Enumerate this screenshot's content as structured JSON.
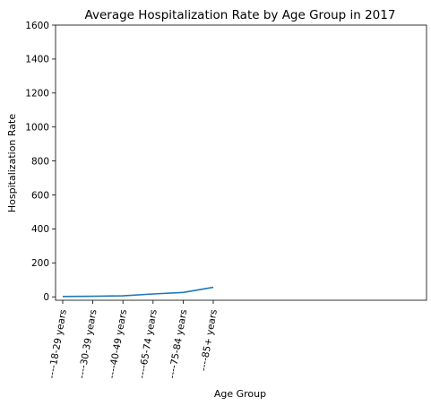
{
  "chart_data": {
    "type": "line",
    "title": "Average Hospitalization Rate by Age Group in 2017",
    "xlabel": "Age Group",
    "ylabel": "Hospitalization Rate",
    "categories": [
      "----18-29 years",
      "----30-39 years",
      "----40-49 years",
      "----65-74 years",
      "----75-84 years",
      "----85+ years"
    ],
    "series": [
      {
        "values": [
          2,
          3,
          6,
          17,
          26,
          56
        ]
      }
    ],
    "ylim": [
      -20,
      1600
    ],
    "yticks": [
      0,
      200,
      400,
      600,
      800,
      1000,
      1200,
      1400,
      1600
    ],
    "grid": false,
    "line_color": "#1f77b4"
  }
}
